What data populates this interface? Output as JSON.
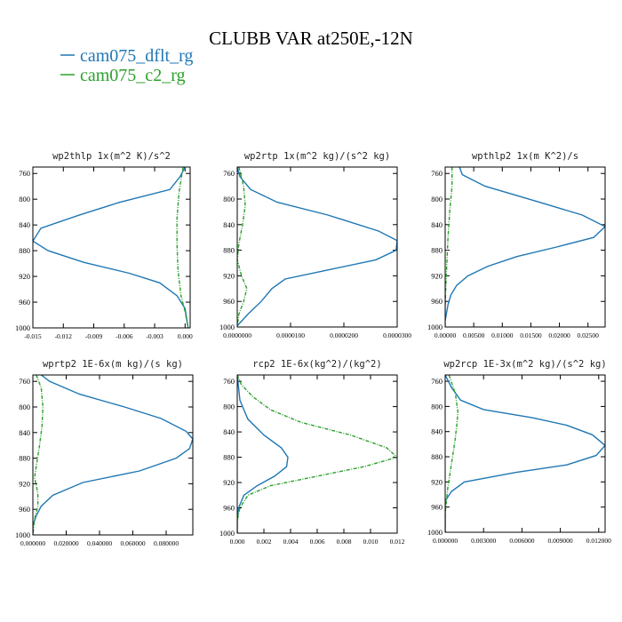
{
  "title": "CLUBB VAR at250E,-12N",
  "legend": [
    {
      "name": "cam075_dflt_rg",
      "color": "#1f77b4"
    },
    {
      "name": "cam075_c2_rg",
      "color": "#2ca02c"
    }
  ],
  "chart_data": [
    {
      "type": "line",
      "title": "wp2thlp   1x(m^2 K)/s^2",
      "xlim": [
        -0.015,
        0.0005
      ],
      "ylim": [
        1000,
        750
      ],
      "x_ticks": [
        -0.015,
        -0.012,
        -0.009,
        -0.006,
        -0.003,
        0.0
      ],
      "x_tick_labels": [
        "-0.015",
        "-0.012",
        "-0.009",
        "-0.006",
        "-0.003",
        "0.000"
      ],
      "y_ticks": [
        760,
        800,
        840,
        880,
        920,
        960,
        1000
      ],
      "y_tick_labels": [
        "760",
        "800",
        "840",
        "880",
        "920",
        "960",
        "1000"
      ],
      "series": [
        {
          "name": "cam075_dflt_rg",
          "color": "#1f77b4",
          "dashed": false,
          "points": [
            [
              0.0,
              750
            ],
            [
              -0.0005,
              765
            ],
            [
              -0.0015,
              785
            ],
            [
              -0.0065,
              805
            ],
            [
              -0.0105,
              825
            ],
            [
              -0.0142,
              845
            ],
            [
              -0.015,
              865
            ],
            [
              -0.0135,
              880
            ],
            [
              -0.01,
              898
            ],
            [
              -0.0055,
              915
            ],
            [
              -0.0025,
              930
            ],
            [
              -0.0008,
              950
            ],
            [
              0.0,
              970
            ],
            [
              0.0003,
              1000
            ]
          ]
        },
        {
          "name": "cam075_c2_rg",
          "color": "#2ca02c",
          "dashed": true,
          "points": [
            [
              -0.0002,
              750
            ],
            [
              -0.0006,
              790
            ],
            [
              -0.0008,
              830
            ],
            [
              -0.0008,
              870
            ],
            [
              -0.0007,
              910
            ],
            [
              -0.0004,
              950
            ],
            [
              0.0,
              975
            ],
            [
              0.0003,
              1000
            ]
          ]
        }
      ]
    },
    {
      "type": "line",
      "title": "wp2rtp   1x(m^2 kg)/(s^2 kg)",
      "xlim": [
        0.0,
        3e-05
      ],
      "ylim": [
        1000,
        750
      ],
      "x_ticks": [
        0.0,
        1e-05,
        2e-05,
        3e-05
      ],
      "x_tick_labels": [
        "0.0000000",
        "0.0000100",
        "0.0000200",
        "0.0000300"
      ],
      "y_ticks": [
        760,
        800,
        840,
        880,
        920,
        960,
        1000
      ],
      "y_tick_labels": [
        "760",
        "800",
        "840",
        "880",
        "920",
        "960",
        "1000"
      ],
      "series": [
        {
          "name": "cam075_dflt_rg",
          "color": "#1f77b4",
          "dashed": false,
          "points": [
            [
              0.0,
              750
            ],
            [
              5e-07,
              765
            ],
            [
              2.5e-06,
              785
            ],
            [
              7.5e-06,
              805
            ],
            [
              1.7e-05,
              825
            ],
            [
              2.65e-05,
              850
            ],
            [
              3e-05,
              865
            ],
            [
              2.98e-05,
              880
            ],
            [
              2.6e-05,
              895
            ],
            [
              1.75e-05,
              910
            ],
            [
              9e-06,
              925
            ],
            [
              6.5e-06,
              940
            ],
            [
              4.5e-06,
              960
            ],
            [
              2e-06,
              980
            ],
            [
              0.0,
              998
            ]
          ]
        },
        {
          "name": "cam075_c2_rg",
          "color": "#2ca02c",
          "dashed": true,
          "points": [
            [
              3e-07,
              750
            ],
            [
              1.2e-06,
              780
            ],
            [
              1.5e-06,
              810
            ],
            [
              1e-06,
              840
            ],
            [
              3e-07,
              870
            ],
            [
              0.0,
              895
            ],
            [
              8e-07,
              920
            ],
            [
              1.8e-06,
              940
            ],
            [
              1.2e-06,
              960
            ],
            [
              3e-07,
              980
            ],
            [
              0.0,
              998
            ]
          ]
        }
      ]
    },
    {
      "type": "line",
      "title": "wpthlp2   1x(m K^2)/s",
      "xlim": [
        0.0,
        0.028
      ],
      "ylim": [
        1000,
        750
      ],
      "x_ticks": [
        0.0,
        0.005,
        0.01,
        0.015,
        0.02,
        0.025
      ],
      "x_tick_labels": [
        "0.00000",
        "0.00500",
        "0.01000",
        "0.01500",
        "0.02000",
        "0.02500"
      ],
      "y_ticks": [
        760,
        800,
        840,
        880,
        920,
        960,
        1000
      ],
      "y_tick_labels": [
        "760",
        "800",
        "840",
        "880",
        "920",
        "960",
        "1000"
      ],
      "series": [
        {
          "name": "cam075_dflt_rg",
          "color": "#1f77b4",
          "dashed": false,
          "points": [
            [
              0.0025,
              750
            ],
            [
              0.003,
              762
            ],
            [
              0.007,
              780
            ],
            [
              0.0165,
              805
            ],
            [
              0.024,
              825
            ],
            [
              0.028,
              843
            ],
            [
              0.026,
              860
            ],
            [
              0.0195,
              875
            ],
            [
              0.0125,
              890
            ],
            [
              0.0075,
              905
            ],
            [
              0.004,
              920
            ],
            [
              0.002,
              935
            ],
            [
              0.001,
              950
            ],
            [
              0.0005,
              965
            ],
            [
              0.0,
              990
            ]
          ]
        },
        {
          "name": "cam075_c2_rg",
          "color": "#2ca02c",
          "dashed": true,
          "points": [
            [
              0.0012,
              750
            ],
            [
              0.0012,
              780
            ],
            [
              0.0008,
              820
            ],
            [
              0.0005,
              860
            ],
            [
              0.0003,
              900
            ],
            [
              0.0001,
              940
            ],
            [
              0.0,
              970
            ],
            [
              0.0,
              998
            ]
          ]
        }
      ]
    },
    {
      "type": "line",
      "title": "wprtp2   1E-6x(m kg)/(s kg)",
      "xlim": [
        0.0,
        0.096
      ],
      "ylim": [
        1000,
        750
      ],
      "x_ticks": [
        0.0,
        0.02,
        0.04,
        0.06,
        0.08
      ],
      "x_tick_labels": [
        "0.000000",
        "0.020000",
        "0.040000",
        "0.060000",
        "0.080000"
      ],
      "y_ticks": [
        760,
        800,
        840,
        880,
        920,
        960,
        1000
      ],
      "y_tick_labels": [
        "760",
        "800",
        "840",
        "880",
        "920",
        "960",
        "1000"
      ],
      "series": [
        {
          "name": "cam075_dflt_rg",
          "color": "#1f77b4",
          "dashed": false,
          "points": [
            [
              0.005,
              750
            ],
            [
              0.01,
              760
            ],
            [
              0.028,
              780
            ],
            [
              0.055,
              800
            ],
            [
              0.077,
              818
            ],
            [
              0.092,
              838
            ],
            [
              0.096,
              850
            ],
            [
              0.094,
              865
            ],
            [
              0.086,
              880
            ],
            [
              0.064,
              900
            ],
            [
              0.03,
              918
            ],
            [
              0.012,
              938
            ],
            [
              0.005,
              955
            ],
            [
              0.002,
              970
            ],
            [
              0.0,
              985
            ],
            [
              0.0,
              1000
            ]
          ]
        },
        {
          "name": "cam075_c2_rg",
          "color": "#2ca02c",
          "dashed": true,
          "points": [
            [
              0.002,
              750
            ],
            [
              0.005,
              770
            ],
            [
              0.006,
              800
            ],
            [
              0.0055,
              830
            ],
            [
              0.004,
              860
            ],
            [
              0.0025,
              885
            ],
            [
              0.001,
              910
            ],
            [
              0.003,
              935
            ],
            [
              0.003,
              955
            ],
            [
              0.001,
              975
            ],
            [
              0.0,
              1000
            ]
          ]
        }
      ]
    },
    {
      "type": "line",
      "title": "rcp2   1E-6x(kg^2)/(kg^2)",
      "xlim": [
        0.0,
        0.012
      ],
      "ylim": [
        1000,
        750
      ],
      "x_ticks": [
        0.0,
        0.002,
        0.004,
        0.006,
        0.008,
        0.01,
        0.012
      ],
      "x_tick_labels": [
        "0.000",
        "0.002",
        "0.004",
        "0.006",
        "0.008",
        "0.010",
        "0.012"
      ],
      "y_ticks": [
        760,
        800,
        840,
        880,
        920,
        960,
        1000
      ],
      "y_tick_labels": [
        "760",
        "800",
        "840",
        "880",
        "920",
        "960",
        "1000"
      ],
      "series": [
        {
          "name": "cam075_dflt_rg",
          "color": "#1f77b4",
          "dashed": false,
          "points": [
            [
              0.0,
              750
            ],
            [
              0.0002,
              790
            ],
            [
              0.0008,
              820
            ],
            [
              0.002,
              845
            ],
            [
              0.0033,
              865
            ],
            [
              0.0038,
              880
            ],
            [
              0.0037,
              895
            ],
            [
              0.0028,
              910
            ],
            [
              0.0015,
              925
            ],
            [
              0.0005,
              940
            ],
            [
              0.0001,
              960
            ],
            [
              0.0,
              980
            ],
            [
              0.0,
              1000
            ]
          ]
        },
        {
          "name": "cam075_c2_rg",
          "color": "#2ca02c",
          "dashed": true,
          "points": [
            [
              0.0,
              750
            ],
            [
              0.0003,
              765
            ],
            [
              0.0012,
              785
            ],
            [
              0.0025,
              805
            ],
            [
              0.0048,
              825
            ],
            [
              0.0085,
              845
            ],
            [
              0.0112,
              865
            ],
            [
              0.012,
              880
            ],
            [
              0.0095,
              895
            ],
            [
              0.006,
              910
            ],
            [
              0.0025,
              925
            ],
            [
              0.0008,
              940
            ],
            [
              0.0002,
              960
            ],
            [
              0.0,
              980
            ],
            [
              0.0,
              1000
            ]
          ]
        }
      ]
    },
    {
      "type": "line",
      "title": "wp2rcp   1E-3x(m^2 kg)/(s^2 kg)",
      "xlim": [
        0.0,
        0.0125
      ],
      "ylim": [
        1000,
        750
      ],
      "x_ticks": [
        0.0,
        0.003,
        0.006,
        0.009,
        0.012
      ],
      "x_tick_labels": [
        "0.000000",
        "0.003000",
        "0.006000",
        "0.009000",
        "0.012000"
      ],
      "y_ticks": [
        760,
        800,
        840,
        880,
        920,
        960,
        1000
      ],
      "y_tick_labels": [
        "760",
        "800",
        "840",
        "880",
        "920",
        "960",
        "1000"
      ],
      "series": [
        {
          "name": "cam075_dflt_rg",
          "color": "#1f77b4",
          "dashed": false,
          "points": [
            [
              0.0,
              750
            ],
            [
              0.0005,
              770
            ],
            [
              0.0012,
              790
            ],
            [
              0.003,
              805
            ],
            [
              0.0068,
              818
            ],
            [
              0.0095,
              830
            ],
            [
              0.0115,
              845
            ],
            [
              0.0125,
              862
            ],
            [
              0.0118,
              878
            ],
            [
              0.0095,
              893
            ],
            [
              0.0055,
              905
            ],
            [
              0.0015,
              920
            ],
            [
              0.0005,
              935
            ],
            [
              0.0,
              950
            ],
            [
              0.0,
              1000
            ]
          ]
        },
        {
          "name": "cam075_c2_rg",
          "color": "#2ca02c",
          "dashed": true,
          "points": [
            [
              0.0003,
              750
            ],
            [
              0.0008,
              780
            ],
            [
              0.001,
              810
            ],
            [
              0.0008,
              850
            ],
            [
              0.0005,
              890
            ],
            [
              0.0002,
              930
            ],
            [
              0.0,
              970
            ],
            [
              0.0,
              1000
            ]
          ]
        }
      ]
    }
  ]
}
